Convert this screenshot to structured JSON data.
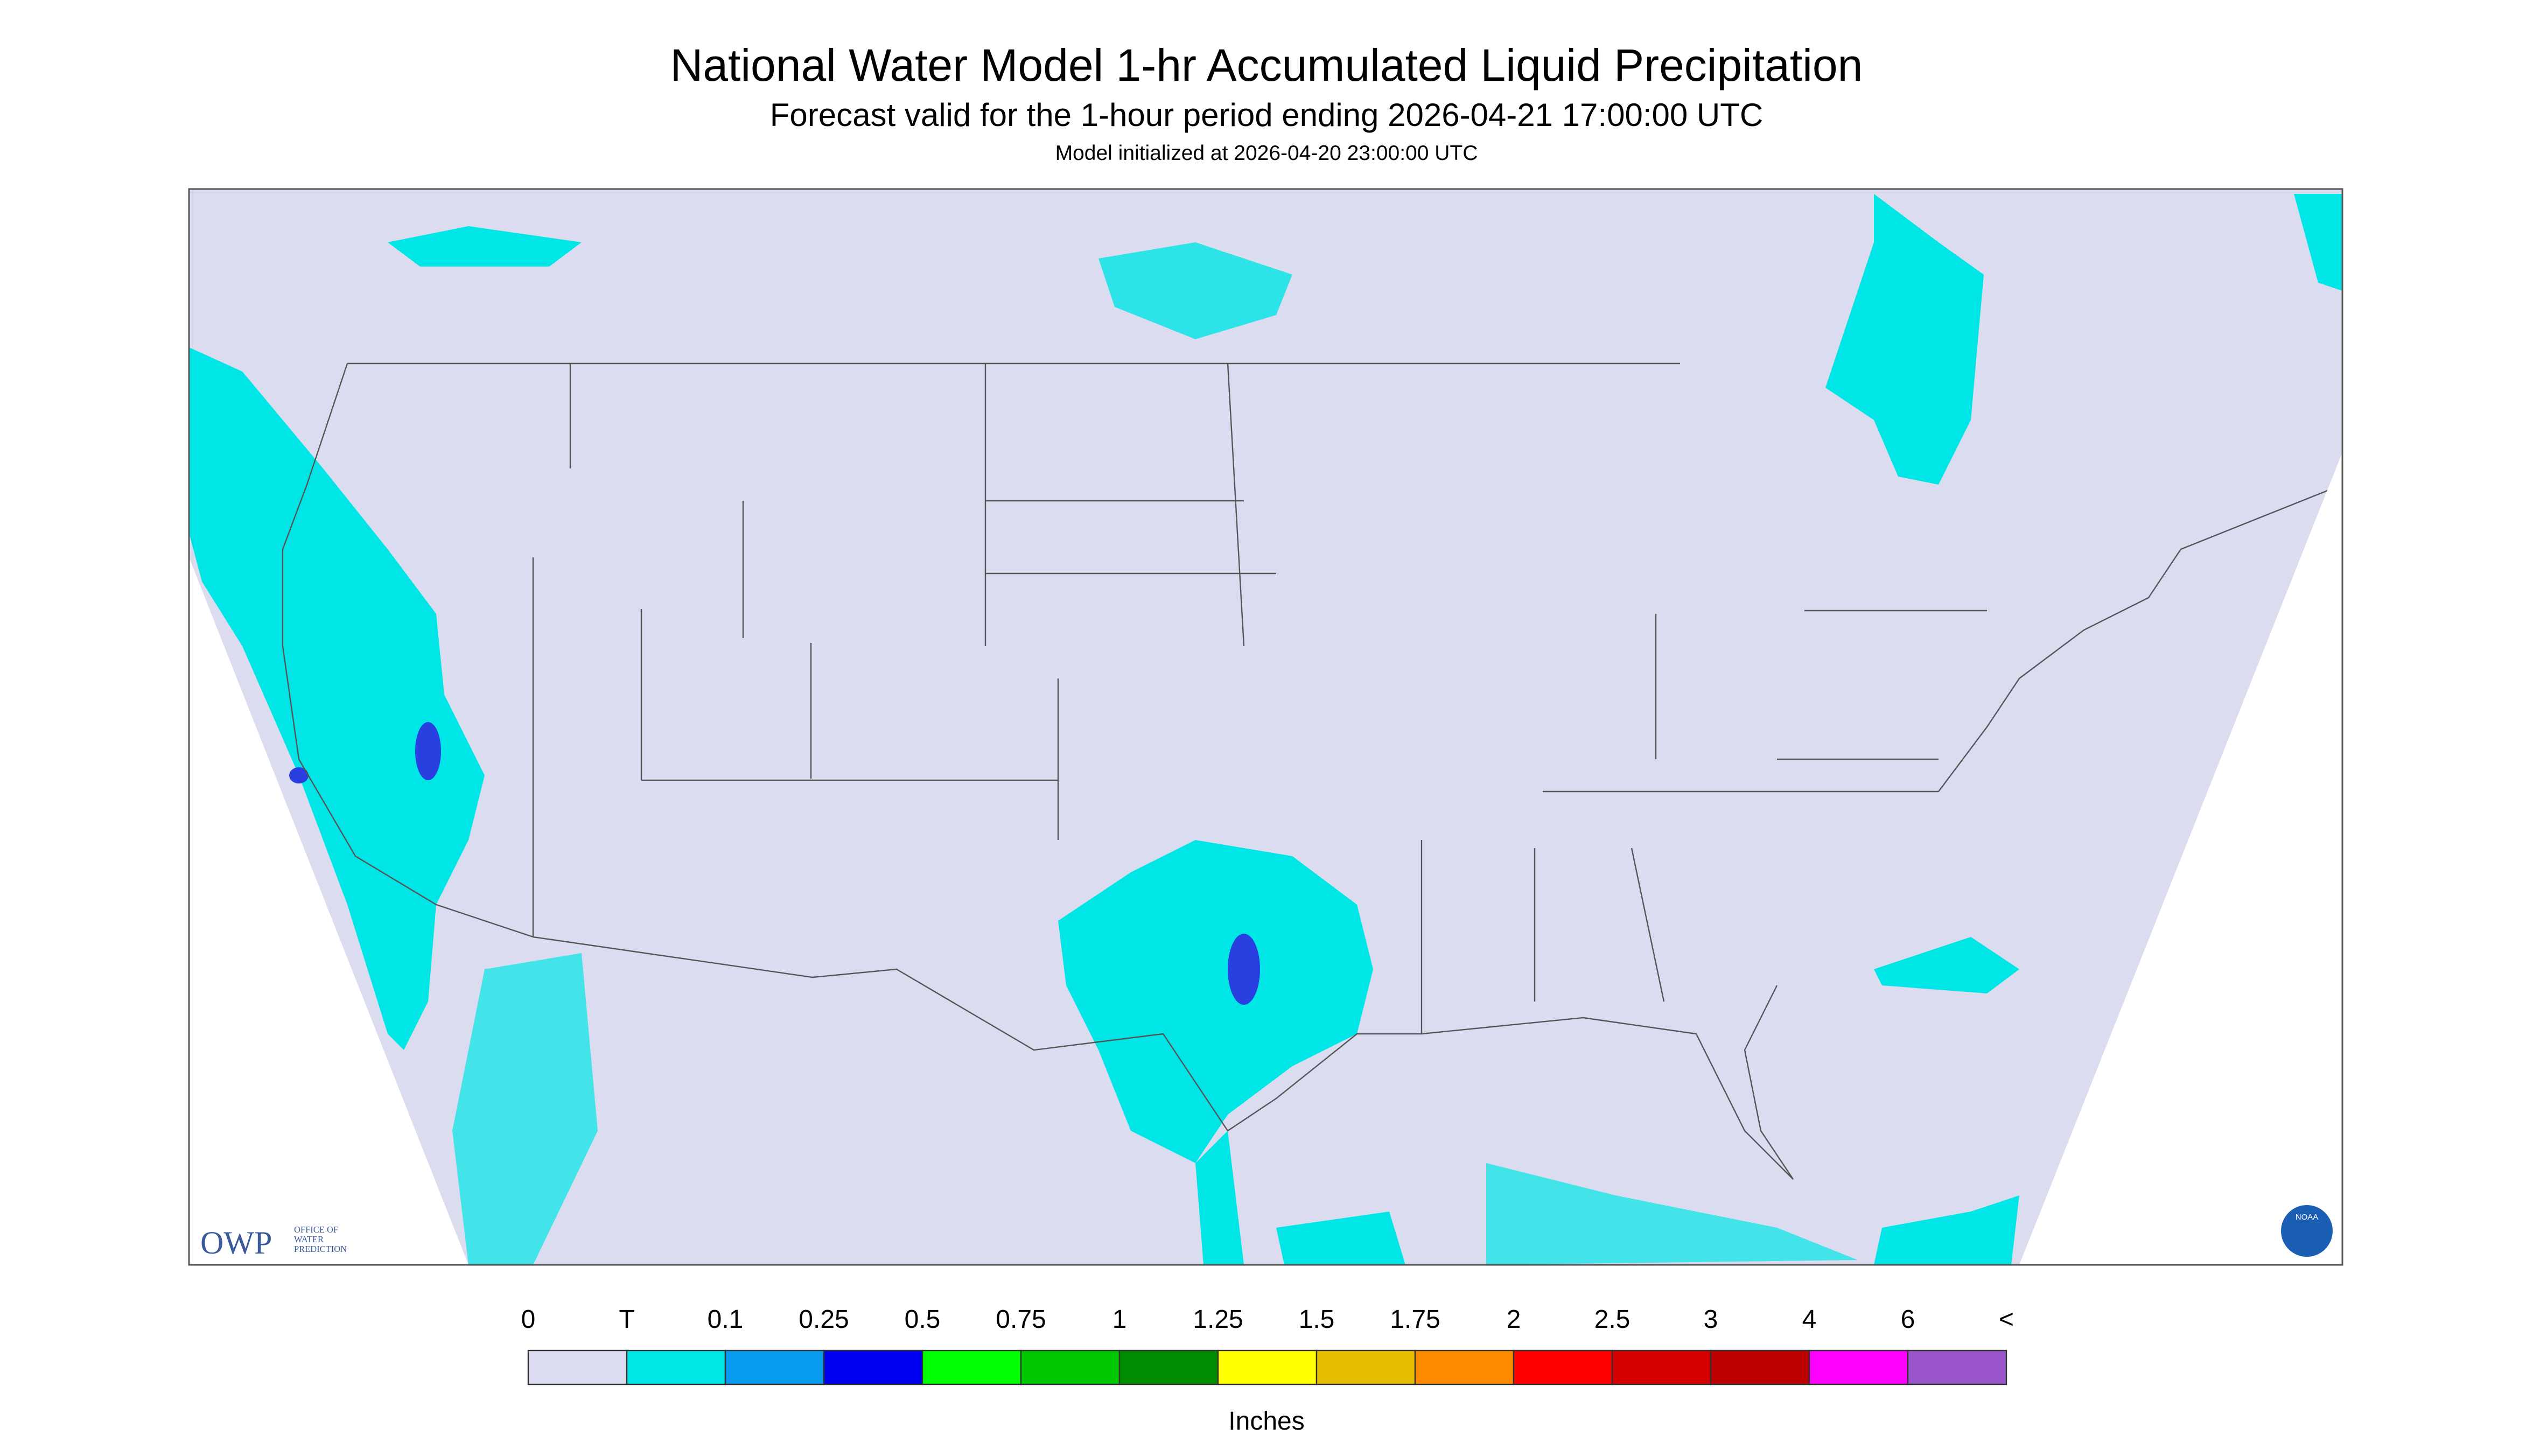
{
  "header": {
    "title": "National Water Model 1-hr Accumulated Liquid Precipitation",
    "subtitle": "Forecast valid for the 1-hour period ending 2026-04-21 17:00:00 UTC",
    "init": "Model initialized at 2026-04-20 23:00:00 UTC"
  },
  "legend": {
    "labels": [
      0,
      "T",
      0.1,
      0.25,
      0.5,
      0.75,
      1,
      1.25,
      1.5,
      1.75,
      2,
      2.5,
      3,
      4,
      6,
      "<"
    ],
    "colors": [
      "#dcdcf0",
      "#00e6e6",
      "#0a9cf0",
      "#0000f0",
      "#00ff00",
      "#00c800",
      "#008c00",
      "#ffff00",
      "#e6be00",
      "#ff8c00",
      "#ff0000",
      "#d60000",
      "#bc0000",
      "#ff00ff",
      "#9955c9"
    ],
    "units": "Inches"
  },
  "logos": {
    "owp": "OWP",
    "owp_text": [
      "OFFICE OF",
      "WATER",
      "PREDICTION"
    ],
    "noaa": "NOAA"
  }
}
